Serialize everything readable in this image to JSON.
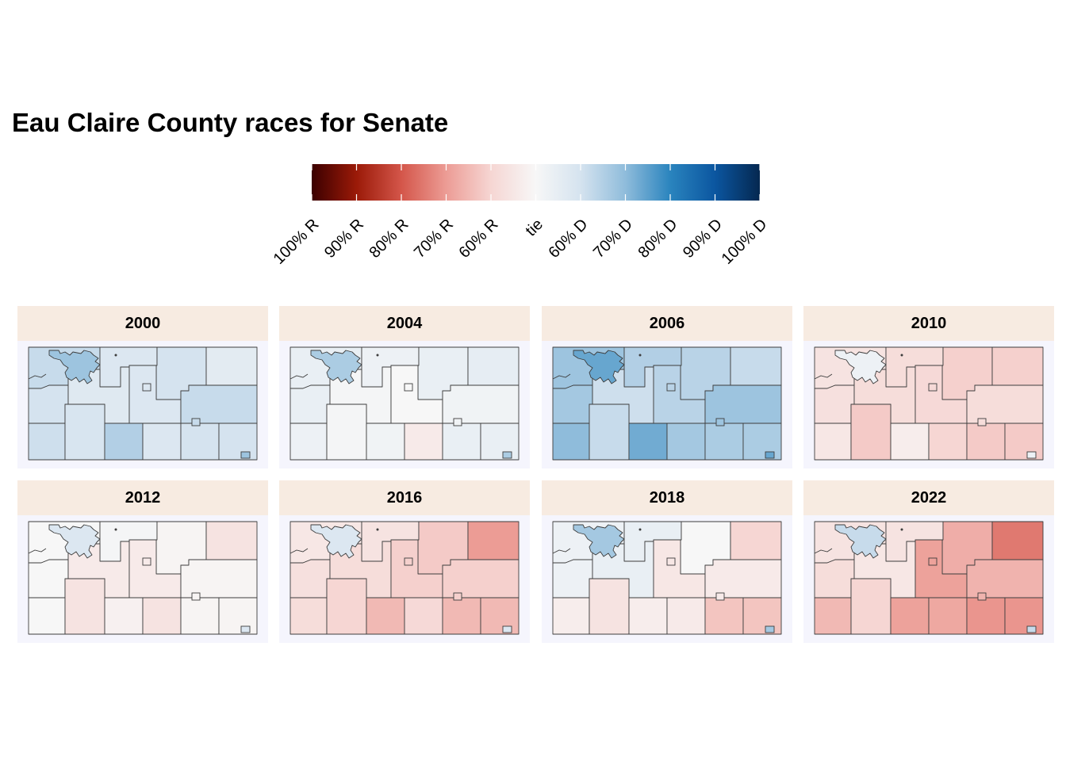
{
  "title": "Eau Claire County races for Senate",
  "legend": {
    "labels": [
      "100% R",
      "90% R",
      "80% R",
      "70% R",
      "60% R",
      "tie",
      "60% D",
      "70% D",
      "80% D",
      "90% D",
      "100% D"
    ],
    "gradient_colors": [
      "#3b0000",
      "#9b1a08",
      "#d4564a",
      "#ec9c95",
      "#f6d6d3",
      "#f7f7f7",
      "#d5e3ef",
      "#8fbcdb",
      "#2a84be",
      "#0b56a0",
      "#052850"
    ]
  },
  "panels": [
    {
      "year": "2000",
      "values": {
        "city": 0.68,
        "nw": 0.62,
        "north": 0.58,
        "ne": 0.6,
        "fne": 0.56,
        "west": 0.6,
        "central": 0.57,
        "ec": 0.58,
        "east": 0.62,
        "sw": 0.61,
        "sc1": 0.59,
        "sc2": 0.65,
        "sc3": 0.58,
        "se": 0.6
      }
    },
    {
      "year": "2004",
      "values": {
        "city": 0.66,
        "nw": 0.54,
        "north": 0.53,
        "ne": 0.54,
        "fne": 0.55,
        "west": 0.54,
        "central": 0.51,
        "ec": 0.5,
        "east": 0.52,
        "sw": 0.53,
        "sc1": 0.51,
        "sc2": 0.52,
        "sc3": 0.46,
        "se": 0.54
      }
    },
    {
      "year": "2006",
      "values": {
        "city": 0.74,
        "nw": 0.68,
        "north": 0.65,
        "ne": 0.64,
        "fne": 0.62,
        "west": 0.67,
        "central": 0.61,
        "ec": 0.64,
        "east": 0.68,
        "sw": 0.7,
        "sc1": 0.62,
        "sc2": 0.73,
        "sc3": 0.67,
        "se": 0.66
      }
    },
    {
      "year": "2010",
      "values": {
        "city": 0.53,
        "nw": 0.44,
        "north": 0.42,
        "ne": 0.39,
        "fne": 0.39,
        "west": 0.43,
        "central": 0.42,
        "ec": 0.41,
        "east": 0.42,
        "sw": 0.45,
        "sc1": 0.38,
        "sc2": 0.47,
        "sc3": 0.4,
        "se": 0.38
      }
    },
    {
      "year": "2012",
      "values": {
        "city": 0.58,
        "nw": 0.5,
        "north": 0.51,
        "ne": 0.49,
        "fne": 0.44,
        "west": 0.5,
        "central": 0.46,
        "ec": 0.46,
        "east": 0.49,
        "sw": 0.5,
        "sc1": 0.44,
        "sc2": 0.48,
        "sc3": 0.44,
        "se": 0.49
      }
    },
    {
      "year": "2016",
      "values": {
        "city": 0.58,
        "nw": 0.45,
        "north": 0.44,
        "ne": 0.38,
        "fne": 0.3,
        "west": 0.43,
        "central": 0.42,
        "ec": 0.39,
        "east": 0.39,
        "sw": 0.42,
        "sc1": 0.4,
        "sc2": 0.35,
        "sc3": 0.41,
        "se": 0.35
      }
    },
    {
      "year": "2018",
      "values": {
        "city": 0.67,
        "nw": 0.53,
        "north": 0.54,
        "ne": 0.5,
        "fne": 0.4,
        "west": 0.53,
        "central": 0.54,
        "ec": 0.45,
        "east": 0.46,
        "sw": 0.47,
        "sc1": 0.44,
        "sc2": 0.47,
        "sc3": 0.46,
        "se": 0.37
      }
    },
    {
      "year": "2022",
      "values": {
        "city": 0.62,
        "nw": 0.44,
        "north": 0.44,
        "ne": 0.33,
        "fne": 0.25,
        "west": 0.42,
        "central": 0.45,
        "ec": 0.31,
        "east": 0.34,
        "sw": 0.35,
        "sc1": 0.4,
        "sc2": 0.31,
        "sc3": 0.32,
        "se": 0.29
      }
    }
  ]
}
